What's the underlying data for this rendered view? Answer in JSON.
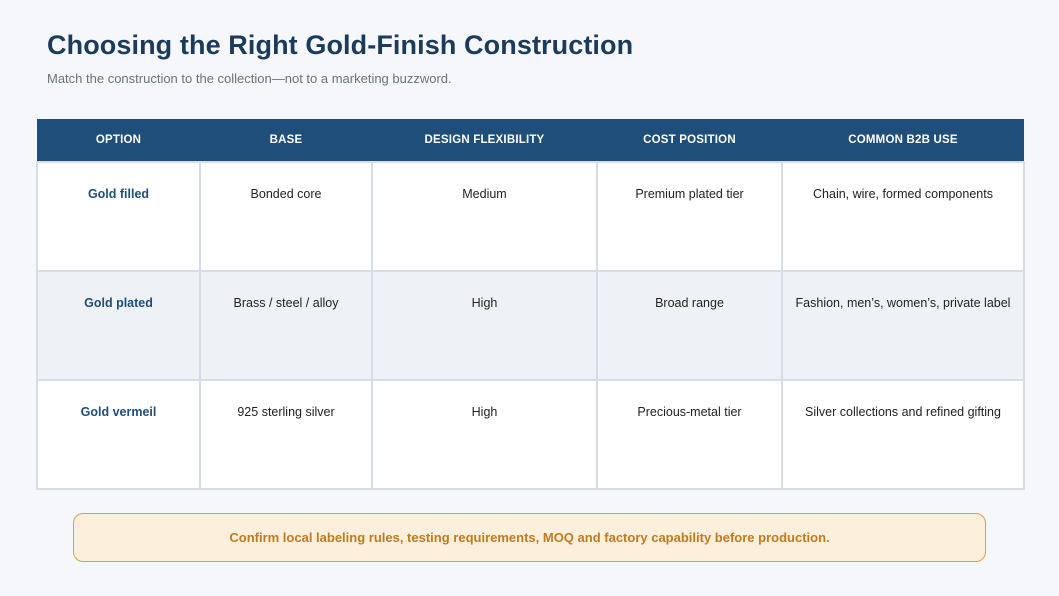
{
  "header": {
    "title": "Choosing the Right Gold-Finish Construction",
    "subtitle": "Match the construction to the collection—not to a marketing buzzword."
  },
  "table": {
    "columns": [
      "OPTION",
      "BASE",
      "DESIGN FLEXIBILITY",
      "COST POSITION",
      "COMMON B2B USE"
    ],
    "rows": [
      [
        "Gold filled",
        "Bonded core",
        "Medium",
        "Premium plated tier",
        "Chain, wire, formed components"
      ],
      [
        "Gold plated",
        "Brass / steel / alloy",
        "High",
        "Broad range",
        "Fashion, men’s, women’s, private label"
      ],
      [
        "Gold vermeil",
        "925 sterling silver",
        "High",
        "Precious-metal tier",
        "Silver collections and refined gifting"
      ]
    ]
  },
  "note": {
    "text": "Confirm local labeling rules, testing requirements, MOQ and factory capability before production."
  },
  "colors": {
    "title": "#1b3a5c",
    "header_bg": "#1f4e7a",
    "note_bg": "#fcefdc",
    "note_border": "#d9a24a",
    "note_text": "#c27a1e"
  }
}
